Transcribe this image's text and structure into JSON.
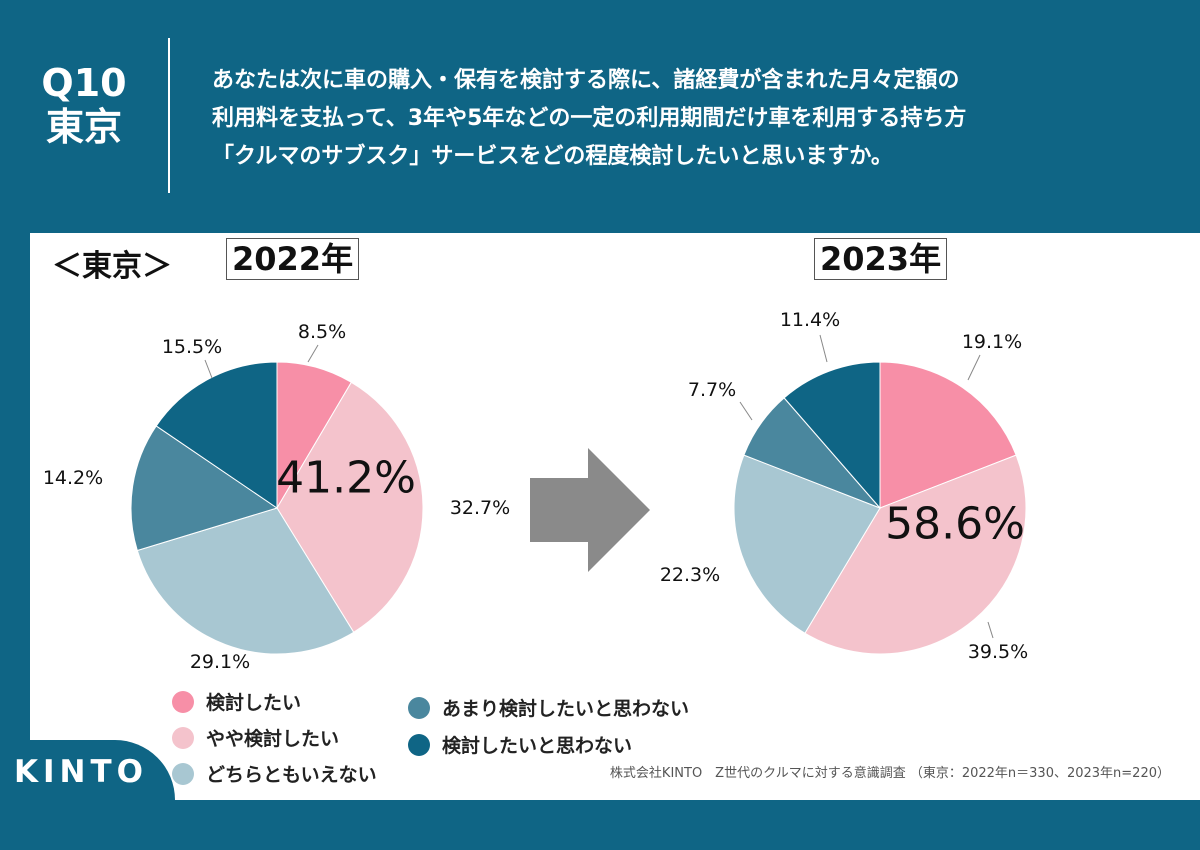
{
  "header": {
    "question_number": "Q10",
    "region": "東京",
    "question_lines": [
      "あなたは次に車の購入・保有を検討する際に、諸経費が含まれた月々定額の",
      "利用料を支払って、3年や5年などの一定の利用期間だけ車を利用する持ち方",
      "「クルマのサブスク」サービスをどの程度検討したいと思いますか。"
    ]
  },
  "region_label": "＜東京＞",
  "colors": {
    "background": "#0f6585",
    "arrow": "#8a8a8a",
    "categories": [
      "#f78fa7",
      "#f4c3cc",
      "#a8c7d2",
      "#4a879e",
      "#0f6585"
    ]
  },
  "legend": [
    {
      "label": "検討したい",
      "color": "#f78fa7"
    },
    {
      "label": "やや検討したい",
      "color": "#f4c3cc"
    },
    {
      "label": "どちらともいえない",
      "color": "#a8c7d2"
    },
    {
      "label": "あまり検討したいと思わない",
      "color": "#4a879e"
    },
    {
      "label": "検討したいと思わない",
      "color": "#0f6585"
    }
  ],
  "chart_data": [
    {
      "type": "pie",
      "title": "2022年",
      "categories": [
        "検討したい",
        "やや検討したい",
        "どちらともいえない",
        "あまり検討したいと思わない",
        "検討したいと思わない"
      ],
      "values": [
        8.5,
        32.7,
        29.1,
        14.2,
        15.5
      ],
      "labels": [
        "8.5%",
        "32.7%",
        "29.1%",
        "14.2%",
        "15.5%"
      ],
      "highlight": "41.2%"
    },
    {
      "type": "pie",
      "title": "2023年",
      "categories": [
        "検討したい",
        "やや検討したい",
        "どちらともいえない",
        "あまり検討したいと思わない",
        "検討したいと思わない"
      ],
      "values": [
        19.1,
        39.5,
        22.3,
        7.7,
        11.4
      ],
      "labels": [
        "19.1%",
        "39.5%",
        "22.3%",
        "7.7%",
        "11.4%"
      ],
      "highlight": "58.6%"
    }
  ],
  "source": "株式会社KINTO　Z世代のクルマに対する意識調査 （東京：2022年n＝330、2023年n=220）",
  "logo": "KINTO"
}
